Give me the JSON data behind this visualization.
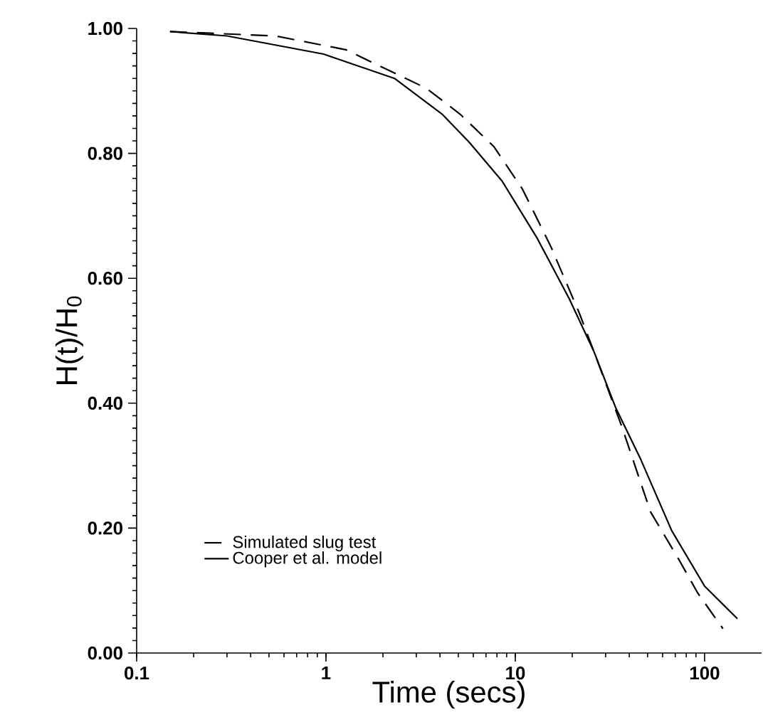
{
  "chart_data": {
    "type": "line",
    "xlabel": "Time  (secs)",
    "ylabel": "H(t)/H$_{0}$",
    "log": "x",
    "xlim": [
      0.1,
      200
    ],
    "ylim": [
      0,
      1
    ],
    "xticks": [
      {
        "value": 0.1,
        "label": "0.1"
      },
      {
        "value": 1,
        "label": "1"
      },
      {
        "value": 10,
        "label": "10"
      },
      {
        "value": 100,
        "label": "100"
      }
    ],
    "yticks": [
      {
        "value": 0,
        "label": "0.00"
      },
      {
        "value": 0.2,
        "label": "0.20"
      },
      {
        "value": 0.4,
        "label": "0.40"
      },
      {
        "value": 0.6,
        "label": "0.60"
      },
      {
        "value": 0.8,
        "label": "0.80"
      },
      {
        "value": 1,
        "label": "1.00"
      }
    ],
    "grid": false,
    "legend": "bottom left",
    "marker": "none",
    "series": [
      {
        "name": "Simulated slug test",
        "color": "#000000",
        "line_style": "dashed",
        "x": [
          0.15,
          0.54,
          1.27,
          3.4,
          5.1,
          7.7,
          10.9,
          15.4,
          21.8,
          26,
          36.6,
          51.8,
          73,
          92,
          125
        ],
        "values": [
          0.995,
          0.988,
          0.966,
          0.904,
          0.863,
          0.811,
          0.743,
          0.651,
          0.544,
          0.483,
          0.362,
          0.226,
          0.15,
          0.096,
          0.039
        ]
      },
      {
        "name": "Cooper et al. model",
        "color": "#000000",
        "line_style": "solid",
        "x": [
          0.15,
          0.3,
          0.97,
          2.3,
          4.1,
          5.7,
          8.5,
          13,
          19.3,
          26,
          34,
          46,
          67,
          100,
          149
        ],
        "values": [
          0.995,
          0.988,
          0.959,
          0.92,
          0.863,
          0.818,
          0.756,
          0.665,
          0.567,
          0.483,
          0.392,
          0.31,
          0.196,
          0.107,
          0.055
        ]
      }
    ]
  }
}
